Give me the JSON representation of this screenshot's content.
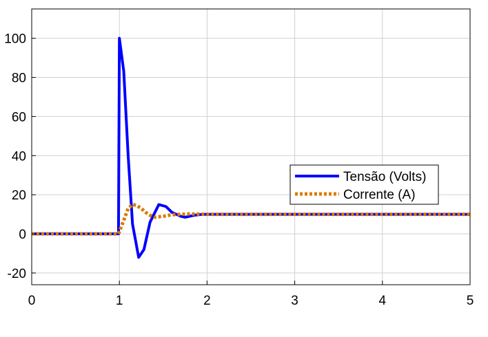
{
  "chart_data": {
    "type": "line",
    "title": "",
    "xlabel": "",
    "ylabel": "",
    "xlim": [
      0,
      5
    ],
    "ylim": [
      -26,
      115
    ],
    "xticks": [
      0,
      1,
      2,
      3,
      4,
      5
    ],
    "yticks": [
      -20,
      0,
      20,
      40,
      60,
      80,
      100
    ],
    "xtick_labels": [
      "0",
      "1",
      "2",
      "3",
      "4",
      "5"
    ],
    "ytick_labels": [
      "-20",
      "0",
      "20",
      "40",
      "60",
      "80",
      "100"
    ],
    "grid": true,
    "legend_position": "center-right",
    "series": [
      {
        "name": "Tensão (Volts)",
        "color": "#0000ff",
        "style": "solid",
        "x": [
          0,
          0.99,
          1.0,
          1.05,
          1.1,
          1.15,
          1.22,
          1.28,
          1.35,
          1.45,
          1.53,
          1.6,
          1.7,
          1.75,
          1.85,
          1.95,
          2.1,
          2.5,
          3.0,
          4.0,
          5.0
        ],
        "y": [
          0,
          0,
          100,
          83,
          40,
          5,
          -12,
          -8,
          6,
          15,
          14,
          11,
          9,
          8.5,
          9.5,
          10,
          10,
          10,
          10,
          10,
          10
        ]
      },
      {
        "name": "Corrente (A)",
        "color": "#d97b00",
        "style": "dotted",
        "x": [
          0,
          0.99,
          1.05,
          1.1,
          1.15,
          1.2,
          1.25,
          1.3,
          1.35,
          1.4,
          1.5,
          1.6,
          1.7,
          1.8,
          2.0,
          2.5,
          3.0,
          4.0,
          5.0
        ],
        "y": [
          0,
          0,
          7,
          13,
          15,
          14.5,
          13,
          11,
          9.5,
          8.5,
          9,
          9.8,
          10,
          10.2,
          10,
          10,
          10,
          10,
          10
        ]
      }
    ]
  }
}
